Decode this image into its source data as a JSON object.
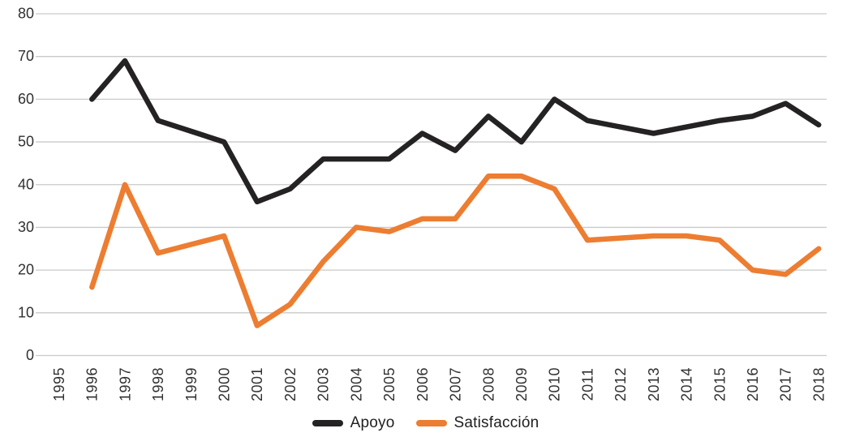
{
  "chart_data": {
    "type": "line",
    "title": "",
    "xlabel": "",
    "ylabel": "",
    "x": [
      1995,
      1996,
      1997,
      1998,
      1999,
      2000,
      2001,
      2002,
      2003,
      2004,
      2005,
      2006,
      2007,
      2008,
      2009,
      2010,
      2011,
      2012,
      2013,
      2014,
      2015,
      2016,
      2017,
      2018
    ],
    "x_tick_labels": [
      "1995",
      "1996",
      "1997",
      "1998",
      "1999",
      "2000",
      "2001",
      "2002",
      "2003",
      "2004",
      "2005",
      "2006",
      "2007",
      "2008",
      "2009",
      "2010",
      "2011",
      "2012",
      "2013",
      "2014",
      "2015",
      "2016",
      "2017",
      "2018"
    ],
    "y_tick_labels": [
      "0",
      "10",
      "20",
      "30",
      "40",
      "50",
      "60",
      "70",
      "80"
    ],
    "ylim": [
      0,
      80
    ],
    "ytick_step": 10,
    "grid": true,
    "x_tick_label_rotation_deg": 90,
    "legend_position": "bottom",
    "series": [
      {
        "name": "Apoyo",
        "color": "#252223",
        "values": [
          null,
          60,
          69,
          55,
          52.5,
          50,
          36,
          39,
          46,
          46,
          46,
          52,
          48,
          56,
          50,
          60,
          55,
          53.5,
          52,
          53.5,
          55,
          56,
          59,
          54
        ]
      },
      {
        "name": "Satisfacción",
        "color": "#ed7d31",
        "values": [
          null,
          16,
          40,
          24,
          26,
          28,
          7,
          12,
          22,
          30,
          29,
          32,
          32,
          42,
          42,
          39,
          27,
          27.5,
          28,
          28,
          27,
          20,
          19,
          25
        ]
      }
    ],
    "style": {
      "gridline_color": "#cacaca",
      "tick_label_color": "#303030",
      "line_width": 6.5
    }
  },
  "legend": {
    "items": [
      {
        "label": "Apoyo"
      },
      {
        "label": "Satisfacción"
      }
    ]
  }
}
